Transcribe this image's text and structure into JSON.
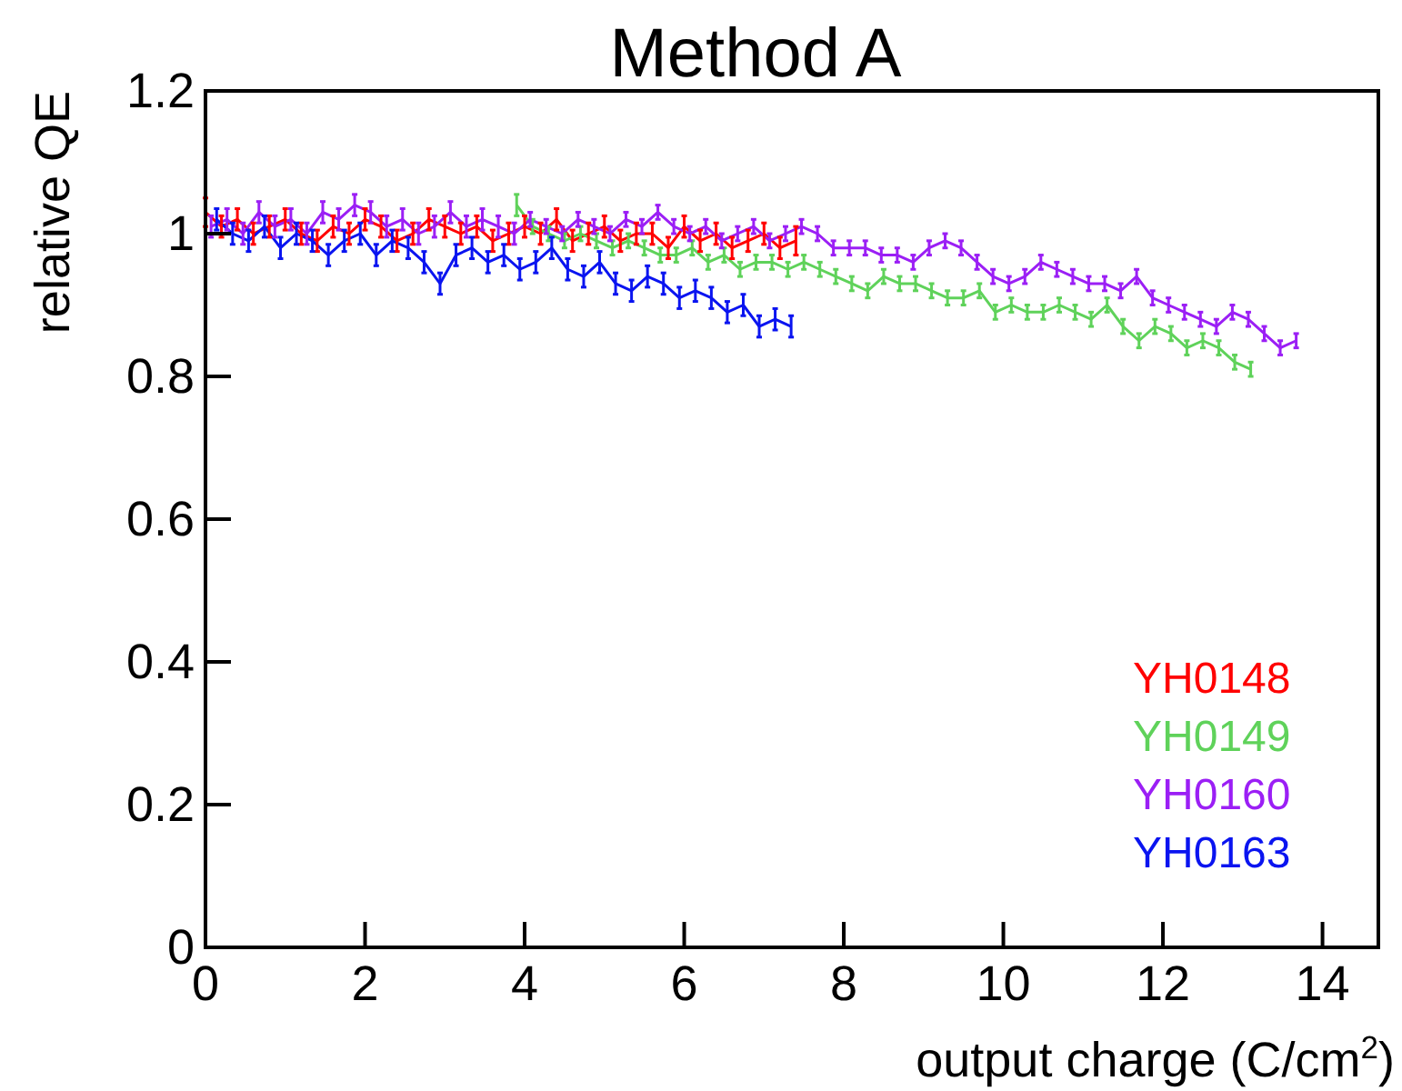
{
  "chart_data": {
    "type": "line",
    "title": "Method A",
    "xlabel": "output charge (C/cm$^{2}$)",
    "ylabel": "relative QE",
    "xlim": [
      0,
      14.7
    ],
    "ylim": [
      0,
      1.2
    ],
    "xticks": [
      0,
      2,
      4,
      6,
      8,
      10,
      12,
      14
    ],
    "yticks": [
      0,
      0.2,
      0.4,
      0.6,
      0.8,
      1,
      1.2
    ],
    "grid": false,
    "legend": "bottom right",
    "marker": "none",
    "line_style": "solid",
    "series": [
      {
        "name": "YH0148",
        "color": "#ff0000",
        "x": [
          0,
          0.2,
          0.4,
          0.6,
          0.8,
          1,
          1.2,
          1.4,
          1.6,
          1.8,
          2,
          2.2,
          2.4,
          2.6,
          2.8,
          3,
          3.2,
          3.4,
          3.6,
          3.8,
          4,
          4.2,
          4.4,
          4.6,
          4.8,
          5,
          5.2,
          5.4,
          5.6,
          5.8,
          6,
          6.2,
          6.4,
          6.6,
          6.8,
          7,
          7.2,
          7.4
        ],
        "values": [
          1.03,
          1.01,
          1.02,
          1.0,
          1.01,
          1.02,
          1.0,
          0.99,
          1.01,
          1.0,
          1.02,
          1.01,
          0.99,
          1.0,
          1.02,
          1.01,
          1.0,
          1.01,
          0.99,
          1.0,
          1.01,
          1.0,
          1.02,
          0.99,
          1.0,
          1.01,
          0.99,
          1.0,
          1.0,
          0.98,
          1.01,
          0.99,
          1.0,
          0.98,
          0.99,
          1.0,
          0.98,
          0.99
        ],
        "errors": [
          0.02,
          0.015,
          0.015,
          0.015,
          0.015,
          0.015,
          0.015,
          0.015,
          0.015,
          0.015,
          0.015,
          0.015,
          0.015,
          0.015,
          0.015,
          0.015,
          0.015,
          0.015,
          0.015,
          0.015,
          0.015,
          0.015,
          0.015,
          0.015,
          0.015,
          0.015,
          0.015,
          0.015,
          0.015,
          0.015,
          0.015,
          0.015,
          0.015,
          0.015,
          0.015,
          0.015,
          0.015,
          0.02
        ]
      },
      {
        "name": "YH0149",
        "color": "#5fd25a",
        "x": [
          3.9,
          4.1,
          4.3,
          4.5,
          4.7,
          4.9,
          5.1,
          5.3,
          5.5,
          5.7,
          5.9,
          6.1,
          6.3,
          6.5,
          6.7,
          6.9,
          7.1,
          7.3,
          7.5,
          7.7,
          7.9,
          8.1,
          8.3,
          8.5,
          8.7,
          8.9,
          9.1,
          9.3,
          9.5,
          9.7,
          9.9,
          10.1,
          10.3,
          10.5,
          10.7,
          10.9,
          11.1,
          11.3,
          11.5,
          11.7,
          11.9,
          12.1,
          12.3,
          12.5,
          12.7,
          12.9,
          13.1
        ],
        "values": [
          1.04,
          1.01,
          1.0,
          0.99,
          1.0,
          0.99,
          0.98,
          0.99,
          0.98,
          0.97,
          0.97,
          0.98,
          0.96,
          0.97,
          0.95,
          0.96,
          0.96,
          0.95,
          0.96,
          0.95,
          0.94,
          0.93,
          0.92,
          0.94,
          0.93,
          0.93,
          0.92,
          0.91,
          0.91,
          0.92,
          0.89,
          0.9,
          0.89,
          0.89,
          0.9,
          0.89,
          0.88,
          0.9,
          0.87,
          0.85,
          0.87,
          0.86,
          0.84,
          0.85,
          0.84,
          0.82,
          0.81
        ],
        "errors": [
          0.015,
          0.01,
          0.01,
          0.01,
          0.01,
          0.01,
          0.01,
          0.01,
          0.01,
          0.01,
          0.01,
          0.01,
          0.01,
          0.01,
          0.01,
          0.01,
          0.01,
          0.01,
          0.01,
          0.01,
          0.01,
          0.01,
          0.01,
          0.01,
          0.01,
          0.01,
          0.01,
          0.01,
          0.01,
          0.01,
          0.01,
          0.01,
          0.01,
          0.01,
          0.01,
          0.01,
          0.01,
          0.01,
          0.01,
          0.01,
          0.01,
          0.01,
          0.01,
          0.01,
          0.01,
          0.01,
          0.01
        ]
      },
      {
        "name": "YH0160",
        "color": "#9b1ff5",
        "x": [
          0.07,
          0.27,
          0.47,
          0.67,
          0.87,
          1.07,
          1.27,
          1.47,
          1.67,
          1.87,
          2.07,
          2.27,
          2.47,
          2.67,
          2.87,
          3.07,
          3.27,
          3.47,
          3.67,
          3.87,
          4.07,
          4.27,
          4.47,
          4.67,
          4.87,
          5.07,
          5.27,
          5.47,
          5.67,
          5.87,
          6.07,
          6.27,
          6.47,
          6.67,
          6.87,
          7.07,
          7.27,
          7.47,
          7.67,
          7.87,
          8.07,
          8.27,
          8.47,
          8.67,
          8.87,
          9.07,
          9.27,
          9.47,
          9.67,
          9.87,
          10.07,
          10.27,
          10.47,
          10.67,
          10.87,
          11.07,
          11.27,
          11.47,
          11.67,
          11.87,
          12.07,
          12.27,
          12.47,
          12.67,
          12.87,
          13.07,
          13.27,
          13.47,
          13.67
        ],
        "values": [
          1.01,
          1.02,
          1.0,
          1.03,
          1.01,
          1.02,
          1.0,
          1.03,
          1.02,
          1.04,
          1.03,
          1.01,
          1.02,
          1.0,
          1.01,
          1.03,
          1.01,
          1.02,
          1.01,
          1.0,
          1.02,
          1.01,
          1.0,
          1.02,
          1.01,
          1.0,
          1.02,
          1.01,
          1.03,
          1.01,
          1.0,
          1.01,
          0.99,
          1.0,
          1.01,
          0.99,
          1.0,
          1.01,
          1.0,
          0.98,
          0.98,
          0.98,
          0.97,
          0.97,
          0.96,
          0.98,
          0.99,
          0.98,
          0.96,
          0.94,
          0.93,
          0.94,
          0.96,
          0.95,
          0.94,
          0.93,
          0.93,
          0.92,
          0.94,
          0.91,
          0.9,
          0.89,
          0.88,
          0.87,
          0.89,
          0.88,
          0.86,
          0.84,
          0.85
        ],
        "errors": [
          0.015,
          0.015,
          0.015,
          0.015,
          0.015,
          0.015,
          0.015,
          0.015,
          0.015,
          0.015,
          0.015,
          0.015,
          0.015,
          0.015,
          0.015,
          0.015,
          0.015,
          0.015,
          0.015,
          0.015,
          0.01,
          0.01,
          0.01,
          0.01,
          0.01,
          0.01,
          0.01,
          0.01,
          0.01,
          0.01,
          0.01,
          0.01,
          0.01,
          0.01,
          0.01,
          0.01,
          0.01,
          0.01,
          0.01,
          0.01,
          0.01,
          0.01,
          0.01,
          0.01,
          0.01,
          0.01,
          0.01,
          0.01,
          0.01,
          0.01,
          0.01,
          0.01,
          0.01,
          0.01,
          0.01,
          0.01,
          0.01,
          0.01,
          0.01,
          0.01,
          0.01,
          0.01,
          0.01,
          0.01,
          0.01,
          0.01,
          0.01,
          0.01,
          0.01
        ]
      },
      {
        "name": "YH0163",
        "color": "#0a14f0",
        "x": [
          0.14,
          0.34,
          0.54,
          0.74,
          0.94,
          1.14,
          1.34,
          1.54,
          1.74,
          1.94,
          2.14,
          2.34,
          2.54,
          2.74,
          2.94,
          3.14,
          3.34,
          3.54,
          3.74,
          3.94,
          4.14,
          4.34,
          4.54,
          4.74,
          4.94,
          5.14,
          5.34,
          5.54,
          5.74,
          5.94,
          6.14,
          6.34,
          6.54,
          6.74,
          6.94,
          7.14,
          7.34
        ],
        "values": [
          1.02,
          1.0,
          0.99,
          1.01,
          0.98,
          1.0,
          0.99,
          0.97,
          0.99,
          1.0,
          0.97,
          0.99,
          0.98,
          0.96,
          0.93,
          0.97,
          0.98,
          0.96,
          0.97,
          0.95,
          0.96,
          0.98,
          0.95,
          0.94,
          0.96,
          0.93,
          0.92,
          0.94,
          0.93,
          0.91,
          0.92,
          0.91,
          0.89,
          0.9,
          0.87,
          0.88,
          0.87
        ],
        "errors": [
          0.015,
          0.015,
          0.015,
          0.015,
          0.015,
          0.015,
          0.015,
          0.015,
          0.015,
          0.015,
          0.015,
          0.015,
          0.015,
          0.015,
          0.015,
          0.015,
          0.015,
          0.015,
          0.015,
          0.015,
          0.015,
          0.015,
          0.015,
          0.015,
          0.015,
          0.015,
          0.015,
          0.015,
          0.015,
          0.015,
          0.015,
          0.015,
          0.015,
          0.015,
          0.015,
          0.015,
          0.015
        ]
      }
    ]
  }
}
